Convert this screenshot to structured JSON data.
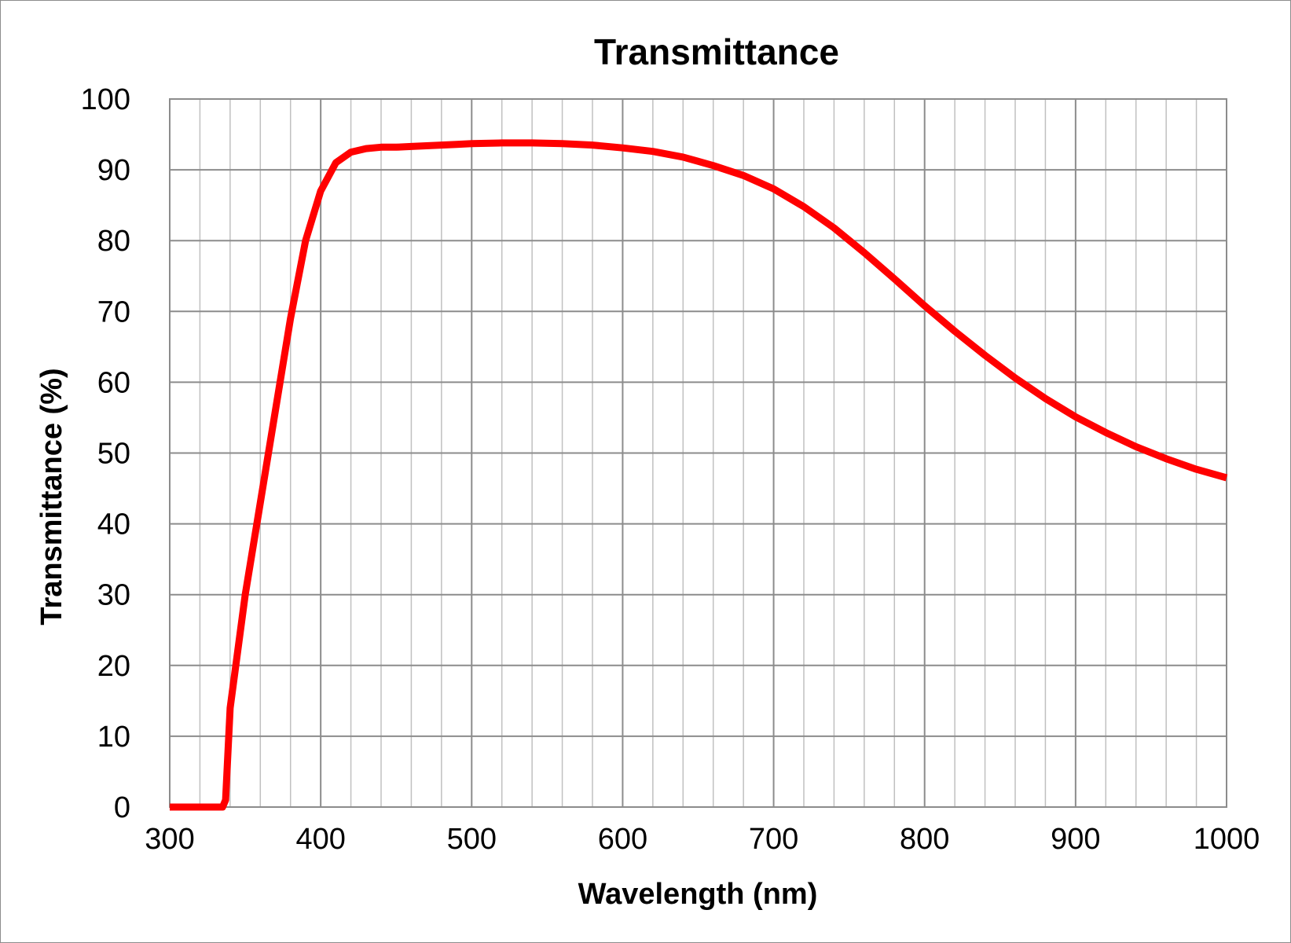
{
  "chart_data": {
    "type": "line",
    "title": "Transmittance",
    "xlabel": "Wavelength (nm)",
    "ylabel": "Transmittance (%)",
    "xlim": [
      300,
      1000
    ],
    "ylim": [
      0,
      100
    ],
    "x_ticks": [
      300,
      400,
      500,
      600,
      700,
      800,
      900,
      1000
    ],
    "y_ticks": [
      0,
      10,
      20,
      30,
      40,
      50,
      60,
      70,
      80,
      90,
      100
    ],
    "grid": true,
    "legend": "none",
    "series": [
      {
        "color": "#ff0000",
        "x": [
          300,
          310,
          320,
          330,
          333,
          335,
          337,
          340,
          345,
          350,
          360,
          370,
          380,
          390,
          400,
          410,
          420,
          430,
          440,
          450,
          460,
          470,
          480,
          490,
          500,
          520,
          540,
          560,
          580,
          600,
          620,
          640,
          660,
          680,
          700,
          720,
          740,
          760,
          780,
          800,
          820,
          840,
          860,
          880,
          900,
          920,
          940,
          960,
          980,
          1000
        ],
        "y": [
          0,
          0,
          0,
          0,
          0,
          0,
          1,
          14,
          22,
          30,
          43,
          56,
          69,
          80,
          87,
          91,
          92.5,
          93,
          93.2,
          93.2,
          93.3,
          93.4,
          93.5,
          93.6,
          93.7,
          93.8,
          93.8,
          93.7,
          93.5,
          93.1,
          92.6,
          91.8,
          90.6,
          89.2,
          87.3,
          84.8,
          81.8,
          78.3,
          74.6,
          70.8,
          67.2,
          63.8,
          60.6,
          57.7,
          55.1,
          52.9,
          50.9,
          49.2,
          47.7,
          46.5
        ]
      }
    ]
  }
}
